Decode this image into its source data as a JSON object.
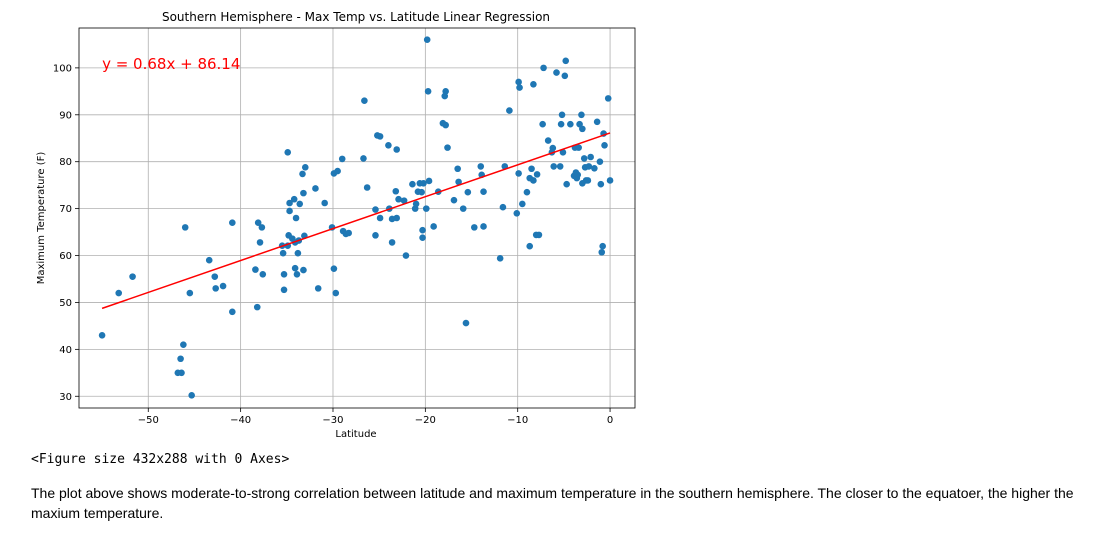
{
  "chart_data": {
    "type": "scatter",
    "title": "Southern Hemisphere - Max Temp vs. Latitude Linear Regression",
    "xlabel": "Latitude",
    "ylabel": "Maximum Temperature (F)",
    "xlim": [
      -57.5,
      2.7
    ],
    "ylim": [
      27.5,
      108.5
    ],
    "xticks": [
      -50,
      -40,
      -30,
      -20,
      -10,
      0
    ],
    "yticks": [
      30,
      40,
      50,
      60,
      70,
      80,
      90,
      100
    ],
    "grid": true,
    "point_color": "#1f77b4",
    "regression": {
      "equation": "y = 0.68x + 86.14",
      "slope": 0.68,
      "intercept": 86.14,
      "x_range": [
        -55,
        0
      ],
      "color": "#ff0000",
      "label_x": -55,
      "label_y": 100
    },
    "points": [
      [
        -55,
        43
      ],
      [
        -53.2,
        52
      ],
      [
        -51.7,
        55.5
      ],
      [
        -46,
        66
      ],
      [
        -45.5,
        52
      ],
      [
        -46.2,
        41
      ],
      [
        -46.5,
        38
      ],
      [
        -46.8,
        35
      ],
      [
        -46.4,
        35
      ],
      [
        -45.3,
        30.2
      ],
      [
        -43.4,
        59
      ],
      [
        -42.8,
        55.5
      ],
      [
        -42.7,
        53
      ],
      [
        -41.9,
        53.5
      ],
      [
        -40.9,
        48
      ],
      [
        -40.9,
        67
      ],
      [
        -38.4,
        57
      ],
      [
        -38.2,
        49
      ],
      [
        -38.1,
        67
      ],
      [
        -37.9,
        62.8
      ],
      [
        -37.7,
        66
      ],
      [
        -37.6,
        56
      ],
      [
        -35.3,
        52.7
      ],
      [
        -35.3,
        56
      ],
      [
        -35.4,
        60.5
      ],
      [
        -35.5,
        62.1
      ],
      [
        -34.9,
        82
      ],
      [
        -34.9,
        62.1
      ],
      [
        -34.8,
        64.3
      ],
      [
        -34.7,
        71.2
      ],
      [
        -34.7,
        69.5
      ],
      [
        -34.4,
        63.6
      ],
      [
        -34.2,
        72
      ],
      [
        -34,
        68
      ],
      [
        -34.1,
        57.3
      ],
      [
        -33.9,
        56
      ],
      [
        -34.1,
        62.8
      ],
      [
        -33.8,
        60.5
      ],
      [
        -33.7,
        63.2
      ],
      [
        -33.6,
        71
      ],
      [
        -33.3,
        77.4
      ],
      [
        -33.2,
        73.3
      ],
      [
        -33.2,
        56.9
      ],
      [
        -33,
        78.8
      ],
      [
        -33.1,
        64.2
      ],
      [
        -31.9,
        74.3
      ],
      [
        -31.6,
        53
      ],
      [
        -30.9,
        71.2
      ],
      [
        -30.1,
        66
      ],
      [
        -29.9,
        77.5
      ],
      [
        -29.9,
        57.2
      ],
      [
        -29.7,
        52
      ],
      [
        -29.5,
        78
      ],
      [
        -29,
        80.6
      ],
      [
        -28.9,
        65.2
      ],
      [
        -28.6,
        64.6
      ],
      [
        -28.3,
        64.8
      ],
      [
        -26.7,
        80.7
      ],
      [
        -26.6,
        93
      ],
      [
        -26.3,
        74.5
      ],
      [
        -25.4,
        64.3
      ],
      [
        -25.4,
        69.8
      ],
      [
        -25.2,
        85.6
      ],
      [
        -24.9,
        85.4
      ],
      [
        -24.9,
        68
      ],
      [
        -24,
        83.5
      ],
      [
        -23.9,
        70
      ],
      [
        -23.6,
        67.8
      ],
      [
        -23.6,
        62.8
      ],
      [
        -23.2,
        73.7
      ],
      [
        -23.1,
        68
      ],
      [
        -23.1,
        82.6
      ],
      [
        -22.9,
        72
      ],
      [
        -22.3,
        71.7
      ],
      [
        -22.1,
        60
      ],
      [
        -21.4,
        75.2
      ],
      [
        -21.1,
        70
      ],
      [
        -21,
        71
      ],
      [
        -20.8,
        73.6
      ],
      [
        -20.6,
        75.4
      ],
      [
        -20.4,
        73.5
      ],
      [
        -20.3,
        63.8
      ],
      [
        -20.3,
        65.4
      ],
      [
        -20.2,
        75.4
      ],
      [
        -19.9,
        70
      ],
      [
        -19.8,
        106
      ],
      [
        -19.7,
        95
      ],
      [
        -19.6,
        75.9
      ],
      [
        -19.1,
        66.2
      ],
      [
        -18.6,
        73.6
      ],
      [
        -18.1,
        88.2
      ],
      [
        -17.8,
        87.8
      ],
      [
        -17.9,
        94
      ],
      [
        -17.8,
        95
      ],
      [
        -17.6,
        83
      ],
      [
        -16.9,
        71.8
      ],
      [
        -16.5,
        78.5
      ],
      [
        -16.4,
        75.7
      ],
      [
        -15.9,
        70
      ],
      [
        -15.6,
        45.6
      ],
      [
        -15.4,
        73.5
      ],
      [
        -14.7,
        66
      ],
      [
        -14,
        79
      ],
      [
        -13.9,
        77.2
      ],
      [
        -13.7,
        73.6
      ],
      [
        -13.7,
        66.2
      ],
      [
        -11.9,
        59.4
      ],
      [
        -11.6,
        70.3
      ],
      [
        -11.4,
        79
      ],
      [
        -10.9,
        90.9
      ],
      [
        -10.1,
        69
      ],
      [
        -9.9,
        97
      ],
      [
        -9.8,
        95.8
      ],
      [
        -9.9,
        77.5
      ],
      [
        -9.5,
        71
      ],
      [
        -9,
        73.5
      ],
      [
        -8.7,
        62
      ],
      [
        -8.7,
        76.5
      ],
      [
        -8.5,
        78.5
      ],
      [
        -8.3,
        96.5
      ],
      [
        -8.3,
        76
      ],
      [
        -8,
        64.4
      ],
      [
        -7.9,
        77.3
      ],
      [
        -7.7,
        64.4
      ],
      [
        -7.3,
        88
      ],
      [
        -7.2,
        100
      ],
      [
        -6.7,
        84.5
      ],
      [
        -6.3,
        82
      ],
      [
        -6.2,
        82.9
      ],
      [
        -6.1,
        79
      ],
      [
        -5.8,
        99
      ],
      [
        -5.4,
        79
      ],
      [
        -5.3,
        88
      ],
      [
        -5.2,
        90
      ],
      [
        -5.1,
        82
      ],
      [
        -4.9,
        98.3
      ],
      [
        -4.8,
        101.5
      ],
      [
        -4.7,
        75.2
      ],
      [
        -4.3,
        88
      ],
      [
        -3.9,
        77
      ],
      [
        -3.8,
        83
      ],
      [
        -3.7,
        77.7
      ],
      [
        -3.6,
        76.5
      ],
      [
        -3.5,
        77.2
      ],
      [
        -3.4,
        83
      ],
      [
        -3.3,
        88
      ],
      [
        -3.1,
        90
      ],
      [
        -3,
        87
      ],
      [
        -3,
        75.4
      ],
      [
        -2.8,
        80.7
      ],
      [
        -2.7,
        78.8
      ],
      [
        -2.6,
        76
      ],
      [
        -2.4,
        76
      ],
      [
        -2.3,
        79
      ],
      [
        -2.1,
        81
      ],
      [
        -1.7,
        78.6
      ],
      [
        -1.4,
        88.5
      ],
      [
        -1.1,
        80
      ],
      [
        -1,
        75.2
      ],
      [
        -0.8,
        62
      ],
      [
        -0.9,
        60.7
      ],
      [
        -0.7,
        86
      ],
      [
        -0.6,
        83.5
      ],
      [
        -0.2,
        93.5
      ],
      [
        0,
        76
      ]
    ]
  },
  "output": {
    "figure_repr": "<Figure size 432x288 with 0 Axes>",
    "description": "The plot above shows moderate-to-strong correlation between latitude and maximum temperature in the southern hemisphere. The closer to the equatoer, the higher the maxium temperature."
  }
}
